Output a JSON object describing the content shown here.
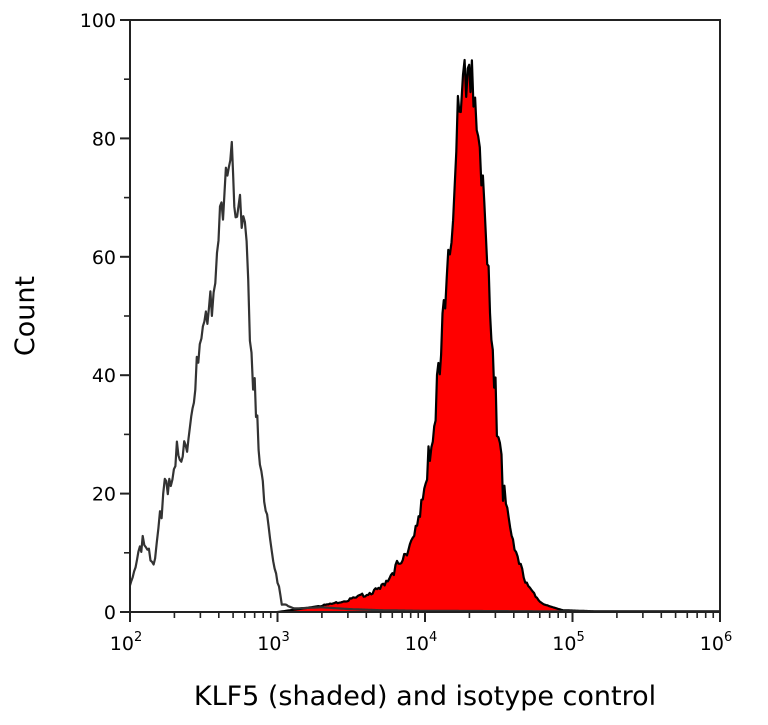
{
  "chart_data": {
    "type": "area",
    "title": "",
    "xlabel": "KLF5 (shaded) and isotype control",
    "ylabel": "Count",
    "xscale": "log",
    "xlim": [
      100,
      1000000
    ],
    "ylim": [
      0,
      100
    ],
    "x_ticks": [
      {
        "base": "10",
        "exp": "2",
        "value": 100
      },
      {
        "base": "10",
        "exp": "3",
        "value": 1000
      },
      {
        "base": "10",
        "exp": "4",
        "value": 10000
      },
      {
        "base": "10",
        "exp": "5",
        "value": 100000
      },
      {
        "base": "10",
        "exp": "6",
        "value": 1000000
      }
    ],
    "y_ticks": [
      "0",
      "20",
      "40",
      "60",
      "80",
      "100"
    ],
    "grid": false,
    "legend": "none",
    "series": [
      {
        "fill": "none",
        "stroke": "#333333",
        "points": [
          [
            100,
            4.5
          ],
          [
            102,
            4.8
          ],
          [
            122,
            11.7
          ],
          [
            148,
            8.3
          ],
          [
            168,
            20
          ],
          [
            208,
            26
          ],
          [
            255,
            31.7
          ],
          [
            277,
            42
          ],
          [
            312,
            51
          ],
          [
            359,
            54.5
          ],
          [
            389,
            64
          ],
          [
            427,
            68
          ],
          [
            490,
            74
          ],
          [
            520,
            63
          ],
          [
            557,
            66
          ],
          [
            617,
            60.7
          ],
          [
            650,
            41
          ],
          [
            700,
            41
          ],
          [
            760,
            26
          ],
          [
            850,
            16.5
          ],
          [
            935,
            9.7
          ],
          [
            1070,
            1.4
          ],
          [
            1300,
            0.6
          ],
          [
            2000,
            0.8
          ],
          [
            3000,
            0.5
          ],
          [
            5000,
            0.3
          ],
          [
            10000,
            0.2
          ],
          [
            100000,
            0.1
          ],
          [
            1000000,
            0.1
          ]
        ]
      },
      {
        "fill": "#ff0000",
        "stroke": "#000000",
        "points": [
          [
            1000,
            0
          ],
          [
            1500,
            0.6
          ],
          [
            2270,
            1.3
          ],
          [
            3500,
            2.5
          ],
          [
            4960,
            3.9
          ],
          [
            6460,
            7.8
          ],
          [
            7900,
            11.6
          ],
          [
            9250,
            18
          ],
          [
            10800,
            27
          ],
          [
            11300,
            31.6
          ],
          [
            12600,
            43
          ],
          [
            13700,
            53
          ],
          [
            15500,
            60.8
          ],
          [
            16700,
            83.5
          ],
          [
            17500,
            80
          ],
          [
            18100,
            88.8
          ],
          [
            19500,
            86
          ],
          [
            20800,
            95
          ],
          [
            22400,
            83.5
          ],
          [
            24700,
            73.8
          ],
          [
            27600,
            56.3
          ],
          [
            30700,
            33.6
          ],
          [
            33800,
            20.7
          ],
          [
            39500,
            11
          ],
          [
            49000,
            4.5
          ],
          [
            63000,
            1.3
          ],
          [
            86000,
            0.3
          ],
          [
            150000,
            0.1
          ],
          [
            1000000,
            0.1
          ]
        ]
      }
    ]
  }
}
